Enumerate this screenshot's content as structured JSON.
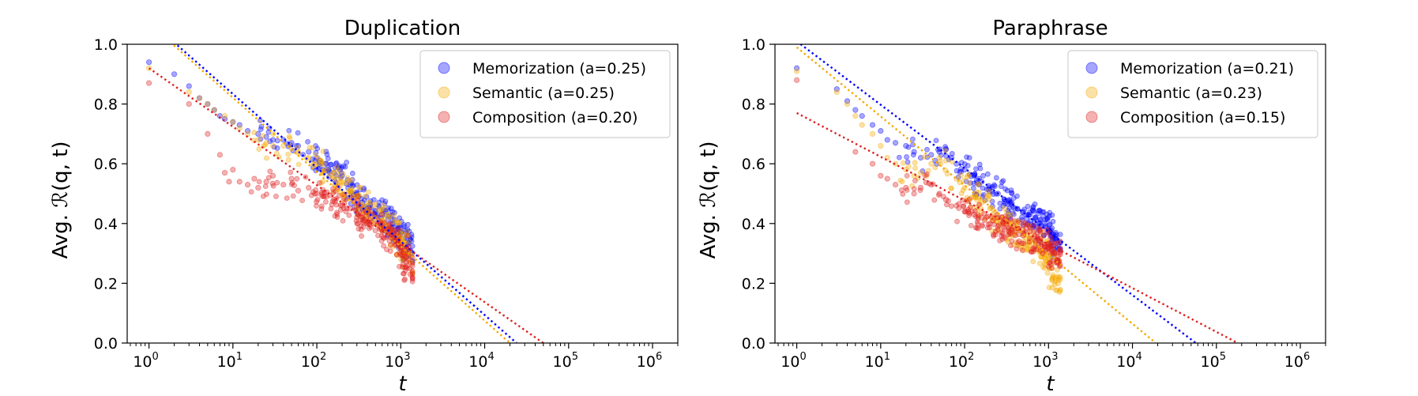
{
  "chart_data": [
    {
      "type": "scatter",
      "title": "Duplication",
      "xlabel": "t",
      "ylabel": "Avg. ℛ(q, t)",
      "x_scale": "log",
      "xlim": [
        0.55,
        2000000
      ],
      "ylim": [
        0.0,
        1.0
      ],
      "x_ticks": [
        1,
        10,
        100,
        1000,
        10000,
        100000,
        1000000
      ],
      "x_tick_labels": [
        "10^0",
        "10^1",
        "10^2",
        "10^3",
        "10^4",
        "10^5",
        "10^6"
      ],
      "y_ticks": [
        0.0,
        0.2,
        0.4,
        0.6,
        0.8,
        1.0
      ],
      "y_tick_labels": [
        "0.0",
        "0.2",
        "0.4",
        "0.6",
        "0.8",
        "1.0"
      ],
      "grid": false,
      "legend_position": "top-right",
      "series": [
        {
          "name": "Memorization (a=0.25)",
          "color": "#0000ff",
          "trend": {
            "style": "dotted",
            "x": [
              1,
              24000
            ],
            "y": [
              1.08,
              0.0
            ]
          },
          "points": [
            [
              1,
              0.94
            ],
            [
              2,
              0.9
            ],
            [
              3,
              0.86
            ],
            [
              4,
              0.82
            ],
            [
              5,
              0.8
            ],
            [
              6,
              0.78
            ],
            [
              7,
              0.76
            ],
            [
              8,
              0.75
            ],
            [
              10,
              0.74
            ],
            [
              12,
              0.73
            ],
            [
              15,
              0.71
            ],
            [
              20,
              0.7
            ],
            [
              25,
              0.69
            ],
            [
              30,
              0.68
            ],
            [
              40,
              0.68
            ],
            [
              50,
              0.67
            ],
            [
              60,
              0.66
            ],
            [
              80,
              0.64
            ],
            [
              100,
              0.62
            ],
            [
              130,
              0.6
            ],
            [
              160,
              0.57
            ],
            [
              200,
              0.56
            ],
            [
              250,
              0.53
            ],
            [
              300,
              0.5
            ],
            [
              350,
              0.47
            ],
            [
              400,
              0.45
            ],
            [
              500,
              0.44
            ],
            [
              600,
              0.43
            ],
            [
              700,
              0.41
            ],
            [
              800,
              0.4
            ],
            [
              900,
              0.38
            ],
            [
              1000,
              0.37
            ],
            [
              1100,
              0.35
            ],
            [
              1200,
              0.33
            ],
            [
              1300,
              0.31
            ]
          ]
        },
        {
          "name": "Semantic (a=0.25)",
          "color": "#f5a800",
          "trend": {
            "style": "dotted",
            "x": [
              1,
              20000
            ],
            "y": [
              1.07,
              0.0
            ]
          },
          "points": [
            [
              1,
              0.92
            ],
            [
              3,
              0.84
            ],
            [
              4,
              0.82
            ],
            [
              5,
              0.8
            ],
            [
              6,
              0.78
            ],
            [
              8,
              0.76
            ],
            [
              10,
              0.74
            ],
            [
              12,
              0.72
            ],
            [
              15,
              0.7
            ],
            [
              20,
              0.68
            ],
            [
              25,
              0.67
            ],
            [
              30,
              0.66
            ],
            [
              40,
              0.66
            ],
            [
              50,
              0.65
            ],
            [
              60,
              0.64
            ],
            [
              80,
              0.62
            ],
            [
              100,
              0.6
            ],
            [
              130,
              0.58
            ],
            [
              160,
              0.55
            ],
            [
              200,
              0.54
            ],
            [
              250,
              0.51
            ],
            [
              300,
              0.49
            ],
            [
              350,
              0.46
            ],
            [
              400,
              0.44
            ],
            [
              500,
              0.42
            ],
            [
              600,
              0.41
            ],
            [
              700,
              0.39
            ],
            [
              800,
              0.38
            ],
            [
              900,
              0.36
            ],
            [
              1000,
              0.34
            ],
            [
              1100,
              0.32
            ],
            [
              1200,
              0.3
            ],
            [
              1300,
              0.27
            ]
          ]
        },
        {
          "name": "Composition (a=0.20)",
          "color": "#e02020",
          "trend": {
            "style": "dotted",
            "x": [
              1,
              50000
            ],
            "y": [
              0.92,
              0.0
            ]
          },
          "points": [
            [
              1,
              0.87
            ],
            [
              3,
              0.8
            ],
            [
              5,
              0.7
            ],
            [
              7,
              0.63
            ],
            [
              8,
              0.57
            ],
            [
              9,
              0.54
            ],
            [
              10,
              0.58
            ],
            [
              12,
              0.54
            ],
            [
              15,
              0.53
            ],
            [
              18,
              0.55
            ],
            [
              20,
              0.52
            ],
            [
              25,
              0.54
            ],
            [
              30,
              0.56
            ],
            [
              40,
              0.53
            ],
            [
              50,
              0.55
            ],
            [
              60,
              0.51
            ],
            [
              80,
              0.52
            ],
            [
              100,
              0.5
            ],
            [
              130,
              0.49
            ],
            [
              160,
              0.48
            ],
            [
              200,
              0.46
            ],
            [
              250,
              0.45
            ],
            [
              300,
              0.42
            ],
            [
              350,
              0.42
            ],
            [
              400,
              0.4
            ],
            [
              500,
              0.4
            ],
            [
              600,
              0.38
            ],
            [
              700,
              0.37
            ],
            [
              800,
              0.35
            ],
            [
              900,
              0.34
            ],
            [
              1000,
              0.32
            ],
            [
              1100,
              0.29
            ],
            [
              1200,
              0.26
            ],
            [
              1300,
              0.23
            ]
          ]
        }
      ]
    },
    {
      "type": "scatter",
      "title": "Paraphrase",
      "xlabel": "t",
      "ylabel": "Avg. ℛ(q, t)",
      "x_scale": "log",
      "xlim": [
        0.55,
        2000000
      ],
      "ylim": [
        0.0,
        1.0
      ],
      "x_ticks": [
        1,
        10,
        100,
        1000,
        10000,
        100000,
        1000000
      ],
      "x_tick_labels": [
        "10^0",
        "10^1",
        "10^2",
        "10^3",
        "10^4",
        "10^5",
        "10^6"
      ],
      "y_ticks": [
        0.0,
        0.2,
        0.4,
        0.6,
        0.8,
        1.0
      ],
      "y_tick_labels": [
        "0.0",
        "0.2",
        "0.4",
        "0.6",
        "0.8",
        "1.0"
      ],
      "grid": false,
      "legend_position": "top-right",
      "series": [
        {
          "name": "Memorization (a=0.21)",
          "color": "#0000ff",
          "trend": {
            "style": "dotted",
            "x": [
              1,
              57000
            ],
            "y": [
              1.01,
              0.0
            ]
          },
          "points": [
            [
              1,
              0.92
            ],
            [
              3,
              0.85
            ],
            [
              4,
              0.81
            ],
            [
              5,
              0.78
            ],
            [
              6,
              0.76
            ],
            [
              8,
              0.73
            ],
            [
              10,
              0.71
            ],
            [
              12,
              0.68
            ],
            [
              15,
              0.67
            ],
            [
              20,
              0.66
            ],
            [
              25,
              0.64
            ],
            [
              30,
              0.62
            ],
            [
              40,
              0.63
            ],
            [
              50,
              0.64
            ],
            [
              60,
              0.65
            ],
            [
              70,
              0.62
            ],
            [
              80,
              0.6
            ],
            [
              100,
              0.58
            ],
            [
              130,
              0.56
            ],
            [
              160,
              0.54
            ],
            [
              200,
              0.52
            ],
            [
              250,
              0.5
            ],
            [
              300,
              0.48
            ],
            [
              350,
              0.47
            ],
            [
              400,
              0.45
            ],
            [
              500,
              0.44
            ],
            [
              600,
              0.43
            ],
            [
              700,
              0.42
            ],
            [
              800,
              0.41
            ],
            [
              900,
              0.4
            ],
            [
              1000,
              0.38
            ],
            [
              1100,
              0.36
            ],
            [
              1200,
              0.35
            ],
            [
              1300,
              0.33
            ]
          ]
        },
        {
          "name": "Semantic (a=0.23)",
          "color": "#f5a800",
          "trend": {
            "style": "dotted",
            "x": [
              1,
              19000
            ],
            "y": [
              0.99,
              0.0
            ]
          },
          "points": [
            [
              1,
              0.91
            ],
            [
              3,
              0.84
            ],
            [
              4,
              0.8
            ],
            [
              5,
              0.76
            ],
            [
              6,
              0.73
            ],
            [
              8,
              0.7
            ],
            [
              10,
              0.66
            ],
            [
              12,
              0.62
            ],
            [
              15,
              0.6
            ],
            [
              20,
              0.58
            ],
            [
              25,
              0.56
            ],
            [
              30,
              0.57
            ],
            [
              40,
              0.6
            ],
            [
              50,
              0.62
            ],
            [
              60,
              0.61
            ],
            [
              80,
              0.55
            ],
            [
              100,
              0.52
            ],
            [
              130,
              0.49
            ],
            [
              160,
              0.47
            ],
            [
              200,
              0.45
            ],
            [
              250,
              0.42
            ],
            [
              300,
              0.4
            ],
            [
              350,
              0.38
            ],
            [
              400,
              0.37
            ],
            [
              500,
              0.36
            ],
            [
              600,
              0.34
            ],
            [
              700,
              0.33
            ],
            [
              800,
              0.31
            ],
            [
              900,
              0.29
            ],
            [
              1000,
              0.27
            ],
            [
              1100,
              0.25
            ],
            [
              1200,
              0.22
            ],
            [
              1300,
              0.2
            ]
          ]
        },
        {
          "name": "Composition (a=0.15)",
          "color": "#e02020",
          "trend": {
            "style": "dotted",
            "x": [
              1,
              180000
            ],
            "y": [
              0.77,
              0.0
            ]
          },
          "points": [
            [
              1,
              0.88
            ],
            [
              5,
              0.64
            ],
            [
              8,
              0.6
            ],
            [
              10,
              0.56
            ],
            [
              12,
              0.55
            ],
            [
              15,
              0.53
            ],
            [
              20,
              0.52
            ],
            [
              25,
              0.5
            ],
            [
              30,
              0.52
            ],
            [
              40,
              0.53
            ],
            [
              50,
              0.5
            ],
            [
              60,
              0.48
            ],
            [
              80,
              0.46
            ],
            [
              100,
              0.44
            ],
            [
              130,
              0.43
            ],
            [
              160,
              0.42
            ],
            [
              200,
              0.4
            ],
            [
              250,
              0.39
            ],
            [
              300,
              0.38
            ],
            [
              350,
              0.37
            ],
            [
              400,
              0.36
            ],
            [
              500,
              0.36
            ],
            [
              600,
              0.35
            ],
            [
              700,
              0.34
            ],
            [
              800,
              0.34
            ],
            [
              900,
              0.33
            ],
            [
              1000,
              0.32
            ],
            [
              1100,
              0.31
            ],
            [
              1200,
              0.3
            ],
            [
              1300,
              0.29
            ]
          ]
        }
      ]
    }
  ]
}
